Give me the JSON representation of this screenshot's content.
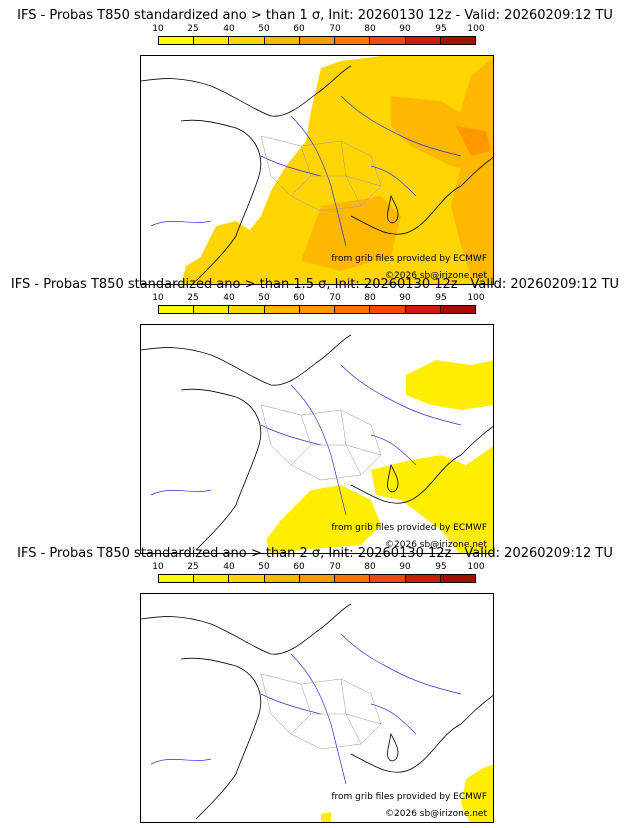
{
  "colorbar": {
    "ticks": [
      "10",
      "25",
      "40",
      "50",
      "60",
      "70",
      "80",
      "90",
      "95",
      "100"
    ],
    "colors": [
      "#ffff00",
      "#ffee00",
      "#ffd700",
      "#ffb800",
      "#ff9900",
      "#ff7700",
      "#f24a0e",
      "#cc1e0a",
      "#a30f05",
      "#6b0000"
    ]
  },
  "panels": [
    {
      "title": "IFS - Probas T850  standardized ano > than 1 σ, Init: 20260130 12z - Valid: 20260209:12 TU",
      "credit_source": "from grib files provided by ECMWF",
      "credit_copyright": "©2026 sb@irizone.net",
      "highlight": "large"
    },
    {
      "title": "IFS - Probas T850  standardized ano > than 1.5 σ, Init: 20260130 12z - Valid: 20260209:12 TU",
      "credit_source": "from grib files provided by ECMWF",
      "credit_copyright": "©2026 sb@irizone.net",
      "highlight": "medium"
    },
    {
      "title": "IFS - Probas T850  standardized ano > than 2 σ, Init: 20260130 12z - Valid: 20260209:12 TU",
      "credit_source": "from grib files provided by ECMWF",
      "credit_copyright": "©2026 sb@irizone.net",
      "highlight": "small"
    }
  ]
}
